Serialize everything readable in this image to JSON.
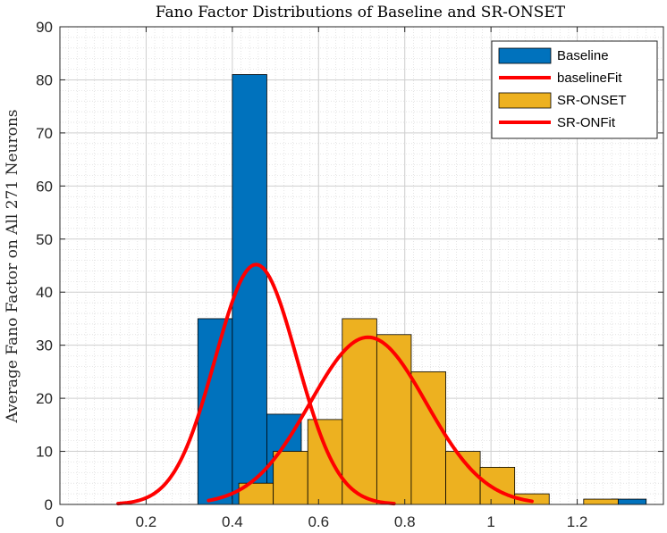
{
  "chart_data": {
    "type": "bar",
    "title": "Fano Factor Distributions of Baseline and SR-ONSET",
    "xlabel": "",
    "ylabel": "Average Fano Factor on All 271 Neurons",
    "xlim": [
      0,
      1.4
    ],
    "ylim": [
      0,
      90
    ],
    "xticks": [
      "0",
      "0.2",
      "0.4",
      "0.6",
      "0.8",
      "1",
      "1.2"
    ],
    "yticks": [
      "0",
      "10",
      "20",
      "30",
      "40",
      "50",
      "60",
      "70",
      "80",
      "90"
    ],
    "grid": true,
    "minor_grid": true,
    "legend_position": "top-right",
    "series": [
      {
        "name": "Baseline",
        "kind": "histogram",
        "color": "#0072BD",
        "bins": [
          {
            "x0": 0.32,
            "x1": 0.4,
            "count": 35
          },
          {
            "x0": 0.4,
            "x1": 0.48,
            "count": 81
          },
          {
            "x0": 0.48,
            "x1": 0.56,
            "count": 17
          },
          {
            "x0": 0.56,
            "x1": 0.64,
            "count": 8
          },
          {
            "x0": 1.28,
            "x1": 1.36,
            "count": 1
          }
        ]
      },
      {
        "name": "baselineFit",
        "kind": "line",
        "color": "#FF0000",
        "curve": {
          "mean": 0.455,
          "sd": 0.095,
          "peak": 45.2,
          "x_start": 0.135,
          "x_end": 0.775
        }
      },
      {
        "name": "SR-ONSET",
        "kind": "histogram",
        "color": "#EDB120",
        "bins": [
          {
            "x0": 0.415,
            "x1": 0.495,
            "count": 4
          },
          {
            "x0": 0.495,
            "x1": 0.575,
            "count": 10
          },
          {
            "x0": 0.575,
            "x1": 0.655,
            "count": 16
          },
          {
            "x0": 0.655,
            "x1": 0.735,
            "count": 35
          },
          {
            "x0": 0.735,
            "x1": 0.815,
            "count": 32
          },
          {
            "x0": 0.815,
            "x1": 0.895,
            "count": 25
          },
          {
            "x0": 0.895,
            "x1": 0.975,
            "count": 10
          },
          {
            "x0": 0.975,
            "x1": 1.055,
            "count": 7
          },
          {
            "x0": 1.055,
            "x1": 1.135,
            "count": 2
          },
          {
            "x0": 1.215,
            "x1": 1.295,
            "count": 1
          }
        ]
      },
      {
        "name": "SR-ONFit",
        "kind": "line",
        "color": "#FF0000",
        "curve": {
          "mean": 0.715,
          "sd": 0.135,
          "peak": 31.5,
          "x_start": 0.345,
          "x_end": 1.095
        }
      }
    ]
  }
}
